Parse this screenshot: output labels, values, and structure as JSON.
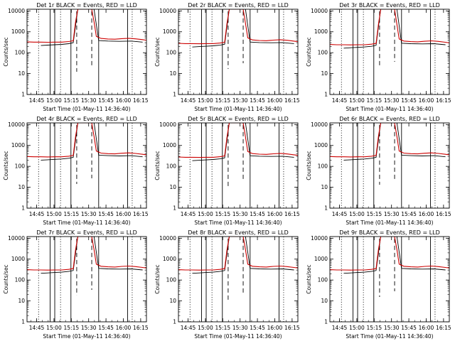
{
  "figure": {
    "background": "#ffffff",
    "colors": {
      "events": "#000000",
      "lld": "#cc0000",
      "markers": "#000000"
    }
  },
  "chart_data": {
    "type": "line",
    "log_y": true,
    "ylim": [
      1,
      12000
    ],
    "xlim": [
      "14:36:40",
      "16:20:00"
    ],
    "ylabel": "Counts/sec",
    "xlabel": "Start Time (01-May-11 14:36:40)",
    "x_ticks": [
      "14:45",
      "15:00",
      "15:15",
      "15:30",
      "15:45",
      "16:00",
      "16:15"
    ],
    "x_ticks_minutes": [
      8.33,
      23.33,
      38.33,
      53.33,
      68.33,
      83.33,
      98.33
    ],
    "y_ticks": [
      "1",
      "10",
      "100",
      "1000",
      "10000"
    ],
    "y_tick_values": [
      1,
      10,
      100,
      1000,
      10000
    ],
    "marker_lines": {
      "dotted_minutes": [
        10,
        29,
        91
      ],
      "solid_minutes": [
        20,
        24,
        38,
        62,
        87
      ],
      "dashed_minutes": [
        43,
        56
      ],
      "dash_extra": [
        -4,
        -8,
        -10,
        -6,
        -2,
        -5,
        -9,
        -3,
        -7
      ]
    },
    "series": [
      {
        "name": "Events",
        "minutes": [
          12,
          18,
          24,
          30,
          36,
          40,
          44,
          58,
          62,
          70,
          80,
          90,
          100
        ],
        "values": [
          220,
          230,
          240,
          250,
          270,
          300,
          12000,
          12000,
          380,
          360,
          350,
          360,
          320
        ]
      },
      {
        "name": "LLD",
        "minutes": [
          0,
          6,
          12,
          18,
          24,
          30,
          36,
          40,
          42,
          44,
          56,
          58,
          60,
          64,
          70,
          76,
          82,
          88,
          94,
          100,
          104
        ],
        "values": [
          330,
          320,
          320,
          315,
          320,
          320,
          340,
          370,
          3000,
          12000,
          12000,
          3000,
          600,
          480,
          450,
          440,
          470,
          490,
          460,
          420,
          390
        ]
      }
    ],
    "panels": [
      {
        "title": "Det 1r BLACK = Events, RED = LLD",
        "scale": 1.0
      },
      {
        "title": "Det 2r BLACK = Events, RED = LLD",
        "scale": 0.85
      },
      {
        "title": "Det 3r BLACK = Events, RED = LLD",
        "scale": 0.75
      },
      {
        "title": "Det 4r BLACK = Events, RED = LLD",
        "scale": 0.9
      },
      {
        "title": "Det 5r BLACK = Events, RED = LLD",
        "scale": 0.85
      },
      {
        "title": "Det 6r BLACK = Events, RED = LLD",
        "scale": 0.9
      },
      {
        "title": "Det 7r BLACK = Events, RED = LLD",
        "scale": 0.95
      },
      {
        "title": "Det 8r BLACK = Events, RED = LLD",
        "scale": 0.95
      },
      {
        "title": "Det 9r BLACK = Events, RED = LLD",
        "scale": 0.95
      }
    ]
  }
}
